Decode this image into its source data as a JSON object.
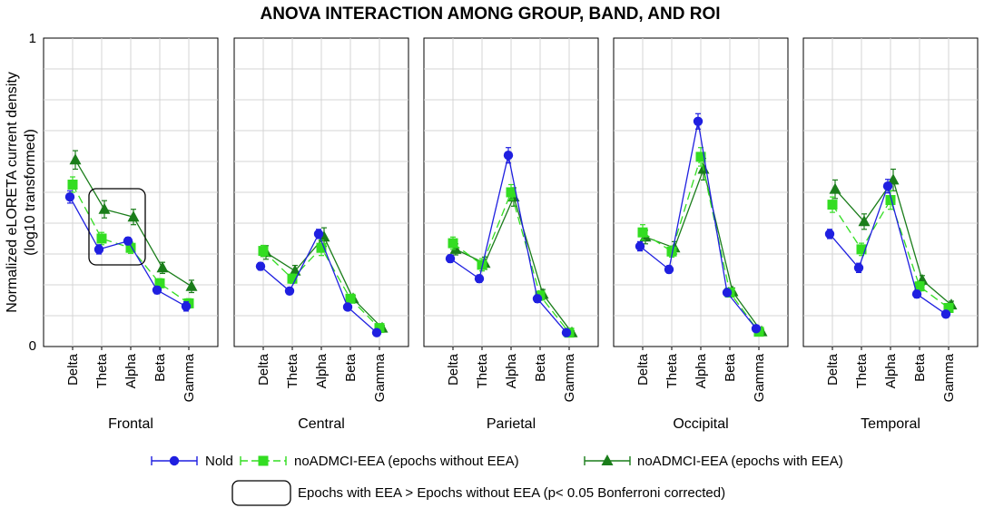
{
  "chart_data": {
    "type": "line",
    "title": "ANOVA INTERACTION AMONG GROUP, BAND, AND ROI",
    "ylabel_line1": "Normalized eLORETA current density",
    "ylabel_line2": "(log10 transformed)",
    "ylim": [
      0,
      1
    ],
    "ytick_labels": [
      "0",
      "1"
    ],
    "grid": true,
    "categories": [
      "Delta",
      "Theta",
      "Alpha",
      "Beta",
      "Gamma"
    ],
    "panels": [
      {
        "name": "Frontal",
        "series": [
          {
            "values": [
              0.485,
              0.315,
              0.342,
              0.183,
              0.13
            ],
            "errors": [
              0.02,
              0.015,
              0.012,
              0.012,
              0.015
            ]
          },
          {
            "values": [
              0.525,
              0.35,
              0.32,
              0.205,
              0.14
            ],
            "errors": [
              0.025,
              0.02,
              0.018,
              0.015,
              0.015
            ]
          },
          {
            "values": [
              0.605,
              0.445,
              0.42,
              0.255,
              0.195
            ],
            "errors": [
              0.03,
              0.028,
              0.025,
              0.018,
              0.02
            ]
          }
        ]
      },
      {
        "name": "Central",
        "series": [
          {
            "values": [
              0.26,
              0.18,
              0.365,
              0.128,
              0.045
            ],
            "errors": [
              0.012,
              0.01,
              0.015,
              0.008,
              0.006
            ]
          },
          {
            "values": [
              0.31,
              0.22,
              0.32,
              0.155,
              0.06
            ],
            "errors": [
              0.018,
              0.015,
              0.025,
              0.012,
              0.008
            ]
          },
          {
            "values": [
              0.305,
              0.245,
              0.355,
              0.155,
              0.06
            ],
            "errors": [
              0.022,
              0.018,
              0.03,
              0.01,
              0.008
            ]
          }
        ]
      },
      {
        "name": "Parietal",
        "series": [
          {
            "values": [
              0.285,
              0.22,
              0.62,
              0.155,
              0.045
            ],
            "errors": [
              0.012,
              0.012,
              0.025,
              0.012,
              0.006
            ]
          },
          {
            "values": [
              0.335,
              0.265,
              0.5,
              0.165,
              0.045
            ],
            "errors": [
              0.02,
              0.02,
              0.025,
              0.015,
              0.006
            ]
          },
          {
            "values": [
              0.315,
              0.27,
              0.485,
              0.17,
              0.045
            ],
            "errors": [
              0.018,
              0.02,
              0.03,
              0.015,
              0.006
            ]
          }
        ]
      },
      {
        "name": "Occipital",
        "series": [
          {
            "values": [
              0.325,
              0.25,
              0.73,
              0.175,
              0.058
            ],
            "errors": [
              0.015,
              0.012,
              0.025,
              0.01,
              0.008
            ]
          },
          {
            "values": [
              0.37,
              0.308,
              0.615,
              0.175,
              0.048
            ],
            "errors": [
              0.025,
              0.018,
              0.03,
              0.012,
              0.008
            ]
          },
          {
            "values": [
              0.355,
              0.32,
              0.575,
              0.178,
              0.048
            ],
            "errors": [
              0.022,
              0.02,
              0.035,
              0.012,
              0.008
            ]
          }
        ]
      },
      {
        "name": "Temporal",
        "series": [
          {
            "values": [
              0.365,
              0.255,
              0.52,
              0.17,
              0.105
            ],
            "errors": [
              0.015,
              0.015,
              0.022,
              0.012,
              0.008
            ]
          },
          {
            "values": [
              0.46,
              0.315,
              0.475,
              0.195,
              0.125
            ],
            "errors": [
              0.025,
              0.02,
              0.03,
              0.015,
              0.01
            ]
          },
          {
            "values": [
              0.51,
              0.405,
              0.54,
              0.215,
              0.135
            ],
            "errors": [
              0.03,
              0.025,
              0.035,
              0.015,
              0.012
            ]
          }
        ]
      }
    ],
    "series_info": [
      {
        "name": "Nold",
        "marker": "circle",
        "color": "#1f1fe0",
        "dash": ""
      },
      {
        "name": "noADMCI-EEA (epochs without EEA)",
        "marker": "square",
        "color": "#33dd22",
        "dash": "9,5"
      },
      {
        "name": "noADMCI-EEA (epochs with EEA)",
        "marker": "triangle",
        "color": "#1a7d1a",
        "dash": ""
      }
    ],
    "highlight": {
      "panel": "Frontal",
      "categories": [
        "Theta",
        "Alpha"
      ]
    },
    "annotation": "Epochs with EEA > Epochs without EEA (p< 0.05 Bonferroni corrected)"
  }
}
